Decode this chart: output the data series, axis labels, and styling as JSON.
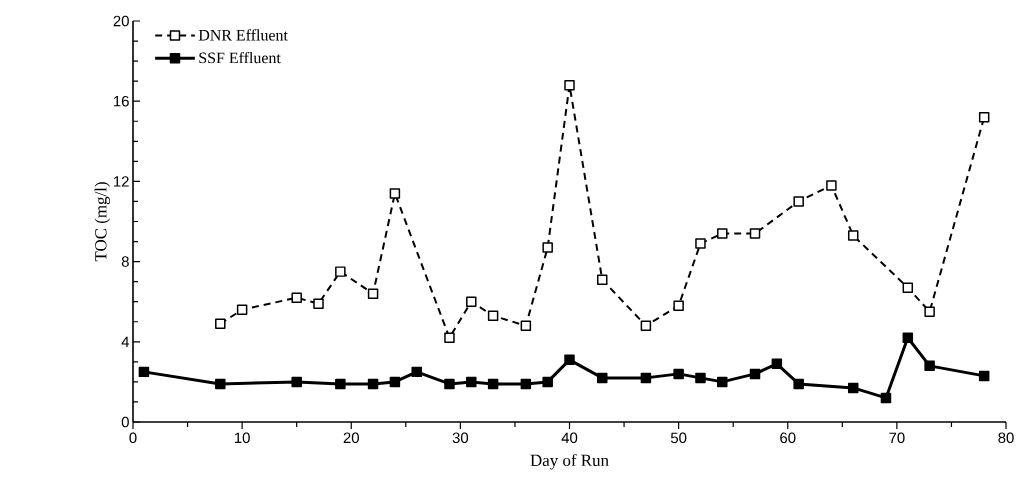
{
  "chart_data": {
    "type": "line",
    "xlabel": "Day of Run",
    "ylabel": "TOC (mg/l)",
    "xlim": [
      0,
      80
    ],
    "ylim": [
      0,
      20
    ],
    "xticks": [
      0,
      10,
      20,
      30,
      40,
      50,
      60,
      70,
      80
    ],
    "yticks": [
      0,
      4,
      8,
      12,
      16,
      20
    ],
    "grid": false,
    "legend": "top left",
    "marker": "square",
    "series": [
      {
        "name": "DNR Effluent",
        "color": "#000000",
        "line_style": "dashed",
        "x": [
          8,
          10,
          15,
          17,
          19,
          22,
          24,
          29,
          31,
          33,
          36,
          38,
          40,
          43,
          47,
          50,
          52,
          54,
          57,
          61,
          64,
          66,
          71,
          73,
          78
        ],
        "values": [
          4.9,
          5.6,
          6.2,
          5.9,
          7.5,
          6.4,
          11.4,
          4.2,
          6.0,
          5.3,
          4.8,
          8.7,
          16.8,
          7.1,
          4.8,
          5.8,
          8.9,
          9.4,
          9.4,
          11.0,
          11.8,
          9.3,
          6.7,
          5.5,
          15.2
        ]
      },
      {
        "name": "SSF Effluent",
        "color": "#000000",
        "line_style": "solid",
        "x": [
          1,
          8,
          15,
          19,
          22,
          24,
          26,
          29,
          31,
          33,
          36,
          38,
          40,
          43,
          47,
          50,
          52,
          54,
          57,
          59,
          61,
          66,
          69,
          71,
          73,
          78
        ],
        "values": [
          2.5,
          1.9,
          2.0,
          1.9,
          1.9,
          2.0,
          2.5,
          1.9,
          2.0,
          1.9,
          1.9,
          2.0,
          3.1,
          2.2,
          2.2,
          2.4,
          2.2,
          2.0,
          2.4,
          2.9,
          1.9,
          1.7,
          1.2,
          4.2,
          2.8,
          2.3
        ]
      }
    ]
  }
}
